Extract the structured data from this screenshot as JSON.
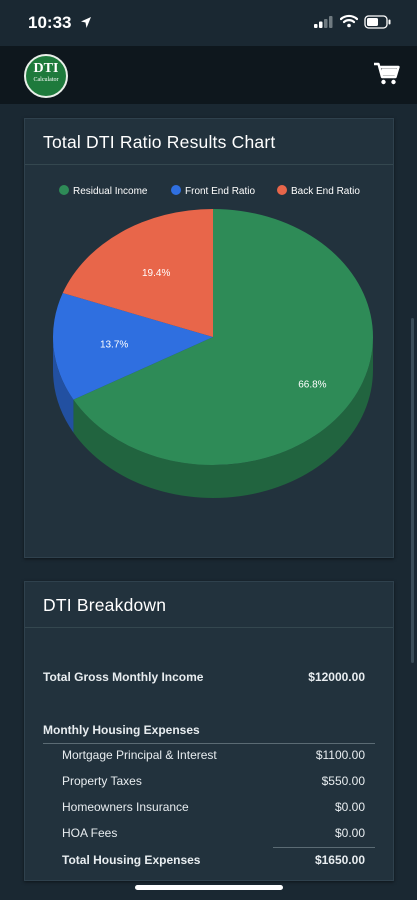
{
  "status": {
    "time": "10:33"
  },
  "app": {
    "logo_main": "DTI",
    "logo_sub": "Calculator"
  },
  "chart_card": {
    "title": "Total DTI Ratio Results Chart"
  },
  "chart_data": {
    "type": "pie",
    "title": "Total DTI Ratio Results Chart",
    "legend_position": "top",
    "series": [
      {
        "name": "Residual Income",
        "value": 66.8,
        "label": "66.8%",
        "color": "#2e8b57"
      },
      {
        "name": "Front End Ratio",
        "value": 13.7,
        "label": "13.7%",
        "color": "#2f6fe0"
      },
      {
        "name": "Back End Ratio",
        "value": 19.4,
        "label": "19.4%",
        "color": "#e8664a"
      }
    ]
  },
  "breakdown": {
    "title": "DTI Breakdown",
    "gross_income_label": "Total Gross Monthly Income",
    "gross_income_value": "$12000.00",
    "housing_header": "Monthly Housing Expenses",
    "rows": [
      {
        "label": "Mortgage Principal & Interest",
        "value": "$1100.00"
      },
      {
        "label": "Property Taxes",
        "value": "$550.00"
      },
      {
        "label": "Homeowners Insurance",
        "value": "$0.00"
      },
      {
        "label": "HOA Fees",
        "value": "$0.00"
      }
    ],
    "total_label": "Total Housing Expenses",
    "total_value": "$1650.00"
  }
}
